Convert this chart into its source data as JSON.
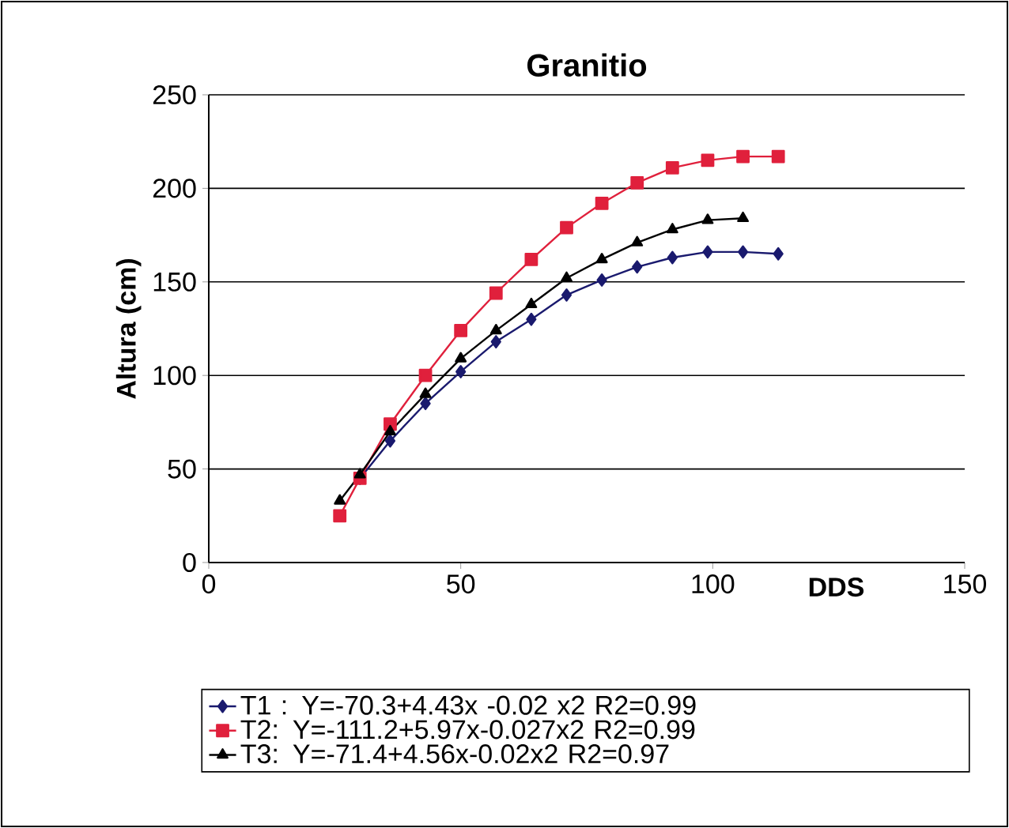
{
  "chart_data": {
    "type": "line",
    "title": "Granitio",
    "xlabel": "DDS",
    "ylabel": "Altura (cm)",
    "xlim": [
      0,
      150
    ],
    "xticks": [
      0,
      50,
      100,
      150
    ],
    "ylim": [
      0,
      250
    ],
    "yticks": [
      0,
      50,
      100,
      150,
      200,
      250
    ],
    "grid": "y",
    "legend": "bottom",
    "line_style": "solid",
    "series": [
      {
        "name": "T1 : Y=-70.3+4.43x -0.02 x2  R2=0.99",
        "color": "#1a1a6e",
        "marker": "diamond",
        "x": [
          30,
          36,
          43,
          50,
          57,
          64,
          71,
          78,
          85,
          92,
          99,
          106,
          113
        ],
        "values": [
          45,
          65,
          85,
          102,
          118,
          130,
          143,
          151,
          158,
          163,
          166,
          166,
          165
        ]
      },
      {
        "name": "T2: Y=-111.2+5.97x-0.027x2  R2=0.99",
        "color": "#e0203c",
        "marker": "square",
        "x": [
          26,
          30,
          36,
          43,
          50,
          57,
          64,
          71,
          78,
          85,
          92,
          99,
          106,
          113
        ],
        "values": [
          25,
          45,
          74,
          100,
          124,
          144,
          162,
          179,
          192,
          203,
          211,
          215,
          217,
          217
        ]
      },
      {
        "name": "T3: Y=-71.4+4.56x-0.02x2   R2=0.97",
        "color": "#000000",
        "marker": "triangle",
        "x": [
          26,
          30,
          36,
          43,
          50,
          57,
          64,
          71,
          78,
          85,
          92,
          99,
          106
        ],
        "values": [
          33,
          47,
          70,
          90,
          109,
          124,
          138,
          152,
          162,
          171,
          178,
          183,
          184
        ]
      }
    ]
  }
}
